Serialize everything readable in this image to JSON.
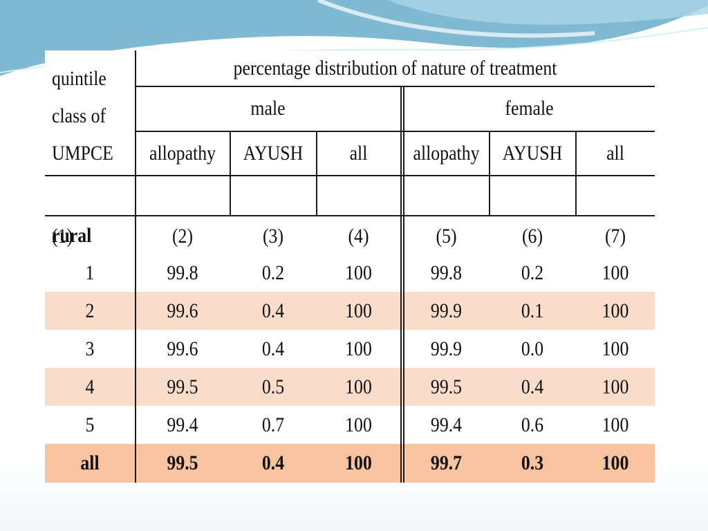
{
  "table": {
    "stub_header": [
      "quintile",
      "class of",
      "UMPCE"
    ],
    "title": "percentage distribution of nature of treatment",
    "groups": [
      "male",
      "female"
    ],
    "subheads": [
      "allopathy",
      "AYUSH",
      "all",
      "allopathy",
      "AYUSH",
      "all"
    ],
    "col_numbers": [
      "(1)",
      "(2)",
      "(3)",
      "(4)",
      "(5)",
      "(6)",
      "(7)"
    ],
    "section": "rural",
    "rows": [
      {
        "label": "1",
        "values": [
          "99.8",
          "0.2",
          "100",
          "99.8",
          "0.2",
          "100"
        ]
      },
      {
        "label": "2",
        "values": [
          "99.6",
          "0.4",
          "100",
          "99.9",
          "0.1",
          "100"
        ]
      },
      {
        "label": "3",
        "values": [
          "99.6",
          "0.4",
          "100",
          "99.9",
          "0.0",
          "100"
        ]
      },
      {
        "label": "4",
        "values": [
          "99.5",
          "0.5",
          "100",
          "99.5",
          "0.4",
          "100"
        ]
      },
      {
        "label": "5",
        "values": [
          "99.4",
          "0.7",
          "100",
          "99.4",
          "0.6",
          "100"
        ]
      }
    ],
    "total_row": {
      "label": "all",
      "values": [
        "99.5",
        "0.4",
        "100",
        "99.7",
        "0.3",
        "100"
      ]
    },
    "colors": {
      "band": "#fadccb",
      "total_band": "#f8c49f",
      "rule": "#1a1a1a"
    }
  }
}
